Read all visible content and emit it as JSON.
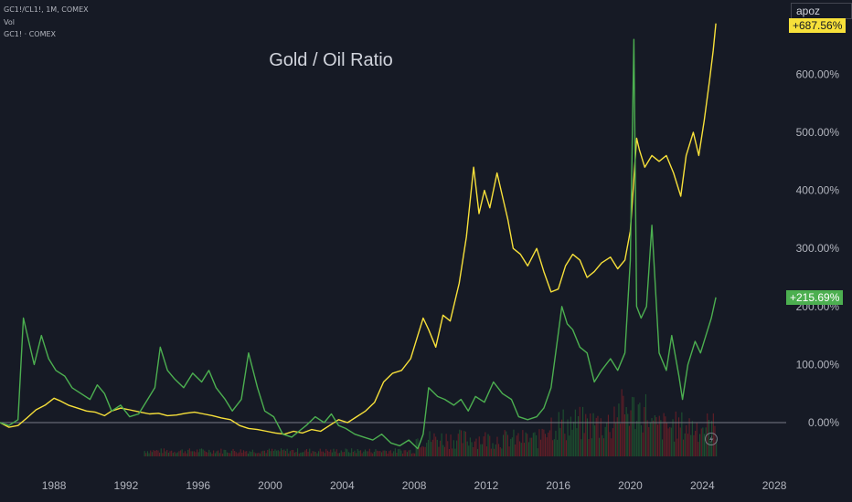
{
  "header": {
    "symbol_line": "GC1!/CL1!, 1M, COMEX",
    "vol_label": "Vol",
    "compare_label": "GC1! · COMEX"
  },
  "user": {
    "name": "apoz"
  },
  "colors": {
    "background": "#161a25",
    "ratio_line": "#f7e03a",
    "gold_line": "#4caf50",
    "zero_line": "#787b86",
    "vol_up": "#1e5631",
    "vol_down": "#6b1f27",
    "axis_text": "#b2b5be"
  },
  "chart_data": {
    "type": "line",
    "title": "Gold / Oil Ratio",
    "percentage_scale": true,
    "y_ticks": [
      "0.00%",
      "100.00%",
      "200.00%",
      "300.00%",
      "400.00%",
      "500.00%",
      "600.00%"
    ],
    "ylim": [
      -50,
      720
    ],
    "xlim": [
      1985.0,
      2029.5
    ],
    "x_ticks": [
      "1988",
      "1992",
      "1996",
      "2000",
      "2004",
      "2008",
      "2012",
      "2016",
      "2020",
      "2024",
      "2028"
    ],
    "grid": false,
    "series": [
      {
        "id": "ratio",
        "last_label": "+687.56%",
        "points": [
          [
            1985.0,
            0
          ],
          [
            1985.5,
            -8
          ],
          [
            1986.0,
            -5
          ],
          [
            1986.5,
            8
          ],
          [
            1987.0,
            22
          ],
          [
            1987.5,
            30
          ],
          [
            1988.0,
            42
          ],
          [
            1988.3,
            38
          ],
          [
            1988.8,
            30
          ],
          [
            1989.3,
            25
          ],
          [
            1989.8,
            20
          ],
          [
            1990.3,
            18
          ],
          [
            1990.8,
            12
          ],
          [
            1991.2,
            20
          ],
          [
            1991.7,
            25
          ],
          [
            1992.2,
            22
          ],
          [
            1992.8,
            18
          ],
          [
            1993.3,
            15
          ],
          [
            1993.8,
            16
          ],
          [
            1994.3,
            12
          ],
          [
            1994.8,
            13
          ],
          [
            1995.3,
            16
          ],
          [
            1995.8,
            18
          ],
          [
            1996.3,
            15
          ],
          [
            1996.8,
            12
          ],
          [
            1997.3,
            8
          ],
          [
            1997.8,
            5
          ],
          [
            1998.3,
            -5
          ],
          [
            1998.8,
            -10
          ],
          [
            1999.3,
            -12
          ],
          [
            1999.8,
            -15
          ],
          [
            2000.3,
            -18
          ],
          [
            2000.8,
            -20
          ],
          [
            2001.3,
            -15
          ],
          [
            2001.8,
            -18
          ],
          [
            2002.3,
            -12
          ],
          [
            2002.8,
            -15
          ],
          [
            2003.3,
            -5
          ],
          [
            2003.8,
            5
          ],
          [
            2004.3,
            0
          ],
          [
            2004.8,
            10
          ],
          [
            2005.3,
            20
          ],
          [
            2005.8,
            35
          ],
          [
            2006.3,
            70
          ],
          [
            2006.8,
            85
          ],
          [
            2007.3,
            90
          ],
          [
            2007.8,
            110
          ],
          [
            2008.2,
            150
          ],
          [
            2008.5,
            180
          ],
          [
            2008.8,
            160
          ],
          [
            2009.2,
            130
          ],
          [
            2009.6,
            185
          ],
          [
            2010.0,
            175
          ],
          [
            2010.5,
            240
          ],
          [
            2010.9,
            320
          ],
          [
            2011.3,
            440
          ],
          [
            2011.6,
            360
          ],
          [
            2011.9,
            400
          ],
          [
            2012.2,
            370
          ],
          [
            2012.6,
            430
          ],
          [
            2012.9,
            390
          ],
          [
            2013.2,
            350
          ],
          [
            2013.5,
            300
          ],
          [
            2013.9,
            290
          ],
          [
            2014.3,
            270
          ],
          [
            2014.8,
            300
          ],
          [
            2015.2,
            260
          ],
          [
            2015.6,
            225
          ],
          [
            2016.0,
            230
          ],
          [
            2016.4,
            270
          ],
          [
            2016.8,
            290
          ],
          [
            2017.2,
            280
          ],
          [
            2017.6,
            250
          ],
          [
            2018.0,
            260
          ],
          [
            2018.4,
            275
          ],
          [
            2018.9,
            285
          ],
          [
            2019.3,
            265
          ],
          [
            2019.7,
            280
          ],
          [
            2020.0,
            330
          ],
          [
            2020.2,
            420
          ],
          [
            2020.35,
            490
          ],
          [
            2020.5,
            470
          ],
          [
            2020.8,
            440
          ],
          [
            2021.2,
            460
          ],
          [
            2021.6,
            450
          ],
          [
            2022.0,
            460
          ],
          [
            2022.4,
            430
          ],
          [
            2022.8,
            390
          ],
          [
            2023.1,
            460
          ],
          [
            2023.5,
            500
          ],
          [
            2023.8,
            460
          ],
          [
            2024.1,
            520
          ],
          [
            2024.4,
            590
          ],
          [
            2024.6,
            640
          ],
          [
            2024.75,
            687.56
          ]
        ]
      },
      {
        "id": "gold",
        "name": "GC1!",
        "last_label": "+215.69%",
        "points": [
          [
            1985.0,
            0
          ],
          [
            1985.5,
            -5
          ],
          [
            1986.0,
            5
          ],
          [
            1986.3,
            180
          ],
          [
            1986.6,
            140
          ],
          [
            1986.9,
            100
          ],
          [
            1987.3,
            150
          ],
          [
            1987.7,
            110
          ],
          [
            1988.1,
            90
          ],
          [
            1988.6,
            80
          ],
          [
            1989.0,
            60
          ],
          [
            1989.5,
            50
          ],
          [
            1990.0,
            40
          ],
          [
            1990.4,
            65
          ],
          [
            1990.8,
            50
          ],
          [
            1991.2,
            20
          ],
          [
            1991.7,
            30
          ],
          [
            1992.2,
            10
          ],
          [
            1992.7,
            15
          ],
          [
            1993.2,
            40
          ],
          [
            1993.6,
            60
          ],
          [
            1993.9,
            130
          ],
          [
            1994.3,
            90
          ],
          [
            1994.7,
            75
          ],
          [
            1995.2,
            60
          ],
          [
            1995.7,
            85
          ],
          [
            1996.2,
            70
          ],
          [
            1996.6,
            90
          ],
          [
            1997.0,
            60
          ],
          [
            1997.5,
            40
          ],
          [
            1997.9,
            20
          ],
          [
            1998.4,
            40
          ],
          [
            1998.8,
            120
          ],
          [
            1999.3,
            60
          ],
          [
            1999.7,
            20
          ],
          [
            2000.2,
            10
          ],
          [
            2000.7,
            -20
          ],
          [
            2001.2,
            -25
          ],
          [
            2001.6,
            -15
          ],
          [
            2002.0,
            -5
          ],
          [
            2002.5,
            10
          ],
          [
            2003.0,
            0
          ],
          [
            2003.4,
            15
          ],
          [
            2003.8,
            -5
          ],
          [
            2004.2,
            -10
          ],
          [
            2004.7,
            -20
          ],
          [
            2005.2,
            -25
          ],
          [
            2005.7,
            -30
          ],
          [
            2006.2,
            -20
          ],
          [
            2006.7,
            -35
          ],
          [
            2007.2,
            -40
          ],
          [
            2007.7,
            -30
          ],
          [
            2008.2,
            -45
          ],
          [
            2008.5,
            -20
          ],
          [
            2008.8,
            60
          ],
          [
            2009.3,
            45
          ],
          [
            2009.7,
            40
          ],
          [
            2010.2,
            30
          ],
          [
            2010.6,
            40
          ],
          [
            2011.0,
            20
          ],
          [
            2011.4,
            45
          ],
          [
            2011.9,
            35
          ],
          [
            2012.4,
            70
          ],
          [
            2012.9,
            50
          ],
          [
            2013.4,
            40
          ],
          [
            2013.8,
            10
          ],
          [
            2014.3,
            5
          ],
          [
            2014.8,
            10
          ],
          [
            2015.2,
            25
          ],
          [
            2015.6,
            60
          ],
          [
            2015.9,
            130
          ],
          [
            2016.2,
            200
          ],
          [
            2016.5,
            170
          ],
          [
            2016.8,
            160
          ],
          [
            2017.2,
            130
          ],
          [
            2017.6,
            120
          ],
          [
            2018.0,
            70
          ],
          [
            2018.4,
            90
          ],
          [
            2018.9,
            110
          ],
          [
            2019.3,
            90
          ],
          [
            2019.7,
            120
          ],
          [
            2020.0,
            280
          ],
          [
            2020.2,
            660
          ],
          [
            2020.35,
            200
          ],
          [
            2020.6,
            180
          ],
          [
            2020.9,
            200
          ],
          [
            2021.2,
            340
          ],
          [
            2021.6,
            120
          ],
          [
            2022.0,
            90
          ],
          [
            2022.3,
            150
          ],
          [
            2022.7,
            80
          ],
          [
            2022.9,
            40
          ],
          [
            2023.2,
            100
          ],
          [
            2023.6,
            140
          ],
          [
            2023.9,
            120
          ],
          [
            2024.2,
            150
          ],
          [
            2024.5,
            180
          ],
          [
            2024.75,
            215.69
          ]
        ]
      }
    ]
  }
}
